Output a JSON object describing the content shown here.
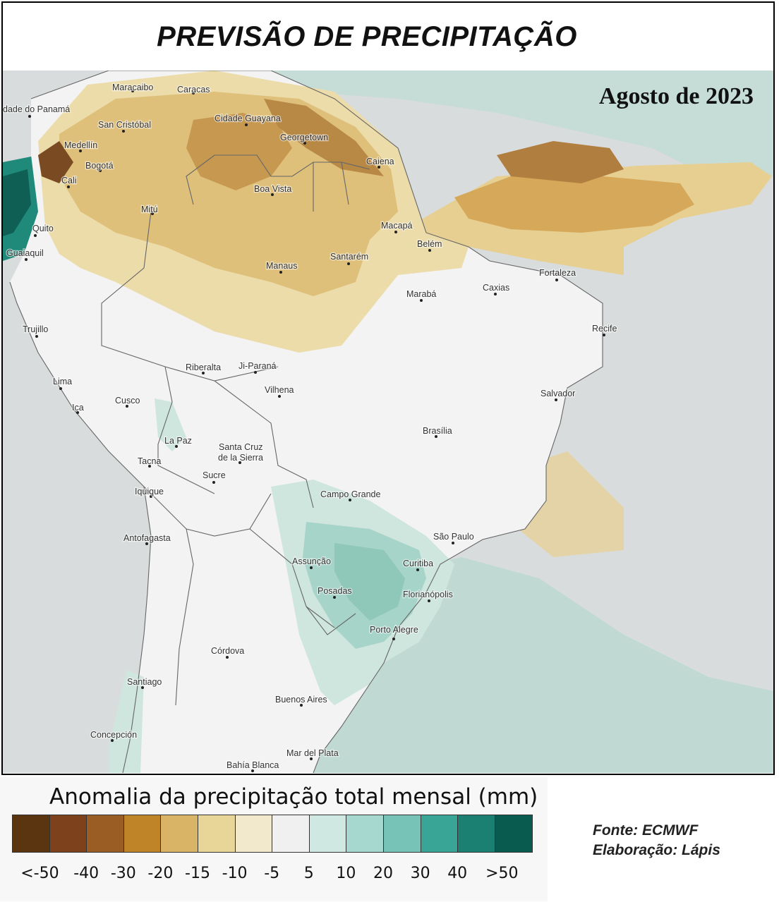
{
  "title": "PREVISÃO DE PRECIPITAÇÃO",
  "period": "Agosto de 2023",
  "cities": [
    {
      "name": "Maracaibo"
    },
    {
      "name": "Caracas"
    },
    {
      "name": "dade do Panamá"
    },
    {
      "name": "San Cristóbal"
    },
    {
      "name": "Cidade Guayana"
    },
    {
      "name": "Georgetown"
    },
    {
      "name": "Medellín"
    },
    {
      "name": "Bogotá"
    },
    {
      "name": "Caiena"
    },
    {
      "name": "Cali"
    },
    {
      "name": "Boa Vista"
    },
    {
      "name": "Mitú"
    },
    {
      "name": "Quito"
    },
    {
      "name": "Macapá"
    },
    {
      "name": "Guaiaquil"
    },
    {
      "name": "Belém"
    },
    {
      "name": "Manaus"
    },
    {
      "name": "Santarém"
    },
    {
      "name": "Fortaleza"
    },
    {
      "name": "Caxias"
    },
    {
      "name": "Marabá"
    },
    {
      "name": "Trujillo"
    },
    {
      "name": "Recife"
    },
    {
      "name": "Riberalta"
    },
    {
      "name": "Ji-Paraná"
    },
    {
      "name": "Lima"
    },
    {
      "name": "Vilhena"
    },
    {
      "name": "Salvador"
    },
    {
      "name": "Cusco"
    },
    {
      "name": "Ica"
    },
    {
      "name": "Brasília"
    },
    {
      "name": "La Paz"
    },
    {
      "name": "Santa Cruz"
    },
    {
      "name": "de la Sierra"
    },
    {
      "name": "Tacna"
    },
    {
      "name": "Sucre"
    },
    {
      "name": "Iquique"
    },
    {
      "name": "Campo Grande"
    },
    {
      "name": "Antofagasta"
    },
    {
      "name": "São Paulo"
    },
    {
      "name": "Assunção"
    },
    {
      "name": "Curitiba"
    },
    {
      "name": "Posadas"
    },
    {
      "name": "Florianópolis"
    },
    {
      "name": "Porto Alegre"
    },
    {
      "name": "Córdova"
    },
    {
      "name": "Santiago"
    },
    {
      "name": "Buenos Aires"
    },
    {
      "name": "Concepción"
    },
    {
      "name": "Mar del Plata"
    },
    {
      "name": "Bahía Blanca"
    }
  ],
  "legend": {
    "title": "Anomalia da precipitação total mensal (mm)",
    "colors": [
      "#5a3510",
      "#7d421c",
      "#9a5d23",
      "#c08428",
      "#d9b366",
      "#e8d698",
      "#f2e9cc",
      "#f0f0f0",
      "#cfe9e2",
      "#a7d8d0",
      "#78c3b7",
      "#38a596",
      "#1b7f72",
      "#0a5b4f"
    ],
    "ticks": [
      "<-50",
      "-40",
      "-30",
      "-20",
      "-15",
      "-10",
      "-5",
      "5",
      "10",
      "20",
      "30",
      "40",
      ">50"
    ]
  },
  "credits": {
    "source": "Fonte: ECMWF",
    "author": "Elaboração: Lápis"
  }
}
